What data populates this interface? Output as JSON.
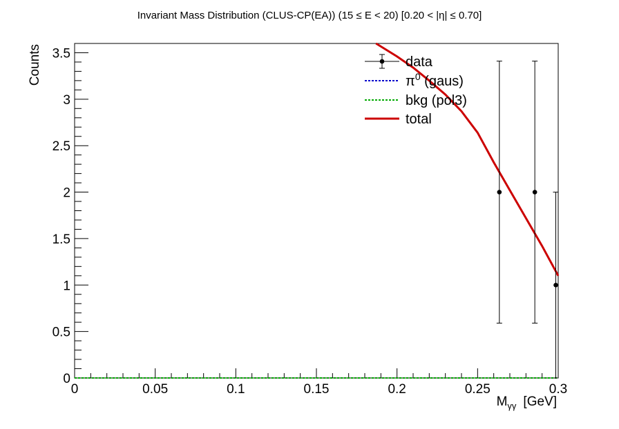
{
  "chart_data": {
    "type": "scatter",
    "title": "Invariant Mass Distribution (CLUS-CP(EA))   (15 ≤ E < 20)   [0.20 < |η| ≤ 0.70]",
    "xlabel": "M",
    "xlabel_sub": "γγ",
    "xlabel_unit": "[GeV]",
    "ylabel": "Counts",
    "xlim": [
      0,
      0.3
    ],
    "ylim": [
      0,
      3.6
    ],
    "x_ticks": [
      0,
      0.05,
      0.1,
      0.15,
      0.2,
      0.25,
      0.3
    ],
    "x_tick_labels": [
      "0",
      "0.05",
      "0.1",
      "0.15",
      "0.2",
      "0.25",
      "0.3"
    ],
    "y_ticks": [
      0,
      0.5,
      1,
      1.5,
      2,
      2.5,
      3,
      3.5
    ],
    "y_tick_labels": [
      "0",
      "0.5",
      "1",
      "1.5",
      "2",
      "2.5",
      "3",
      "3.5"
    ],
    "grid": false,
    "legend_position": "top-right",
    "series": [
      {
        "name": "data",
        "kind": "points-with-errors",
        "color": "#000000",
        "points": [
          {
            "x": 0.2635,
            "y": 2,
            "err_low": 1.41,
            "err_high": 1.41
          },
          {
            "x": 0.2855,
            "y": 2,
            "err_low": 1.41,
            "err_high": 1.41
          },
          {
            "x": 0.2985,
            "y": 1,
            "err_low": 1.0,
            "err_high": 1.0
          }
        ]
      },
      {
        "name": "π⁰ (gaus)",
        "kind": "line",
        "style": "dotted",
        "color": "#0000cc",
        "x": [
          0,
          0.3
        ],
        "y": [
          0,
          0
        ]
      },
      {
        "name": "bkg (pol3)",
        "kind": "line",
        "style": "dotted",
        "color": "#00aa00",
        "x": [
          0,
          0.3
        ],
        "y": [
          0,
          0
        ]
      },
      {
        "name": "total",
        "kind": "line",
        "style": "solid",
        "color": "#cc0000",
        "x": [
          0.187,
          0.2,
          0.21,
          0.22,
          0.23,
          0.24,
          0.25,
          0.26,
          0.27,
          0.28,
          0.29,
          0.3
        ],
        "y": [
          3.6,
          3.46,
          3.34,
          3.2,
          3.05,
          2.87,
          2.64,
          2.32,
          2.02,
          1.72,
          1.42,
          1.1
        ]
      }
    ],
    "legend": [
      {
        "label": "data",
        "marker": "point-error",
        "color": "#000000"
      },
      {
        "label": "π",
        "label_sup": "0",
        "label_rest": " (gaus)",
        "marker": "dotted-line",
        "color": "#0000cc"
      },
      {
        "label": "bkg (pol3)",
        "marker": "dotted-line",
        "color": "#00aa00"
      },
      {
        "label": "total",
        "marker": "solid-line",
        "color": "#cc0000"
      }
    ]
  }
}
